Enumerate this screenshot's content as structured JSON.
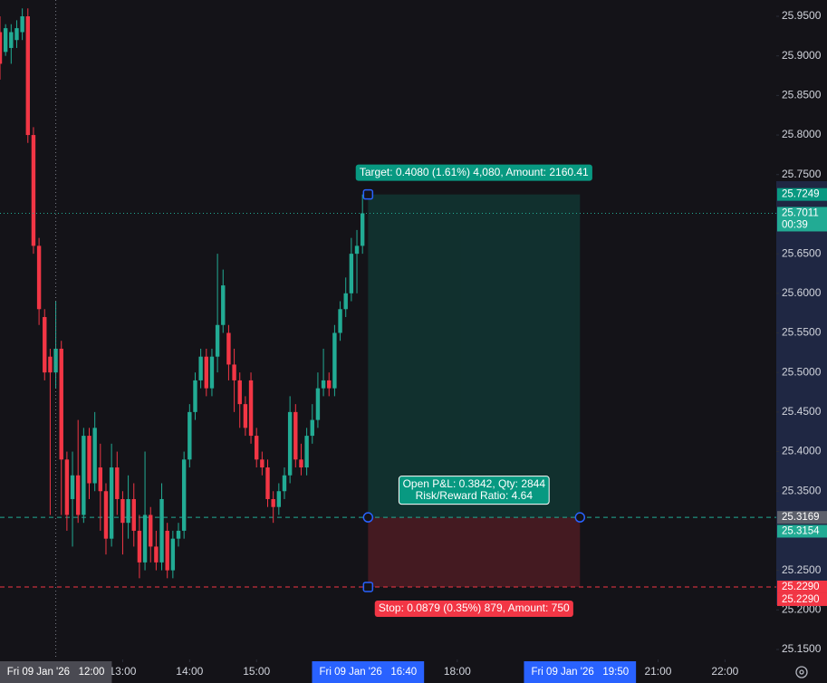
{
  "chart_data": {
    "type": "candlestick",
    "x": [
      "11:10",
      "11:15",
      "11:20",
      "11:25",
      "11:30",
      "11:35",
      "11:40",
      "11:45",
      "11:50",
      "11:55",
      "12:00",
      "12:05",
      "12:10",
      "12:15",
      "12:20",
      "12:25",
      "12:30",
      "12:35",
      "12:40",
      "12:45",
      "12:50",
      "12:55",
      "13:00",
      "13:05",
      "13:10",
      "13:15",
      "13:20",
      "13:25",
      "13:30",
      "13:35",
      "13:40",
      "13:45",
      "13:50",
      "13:55",
      "14:00",
      "14:05",
      "14:10",
      "14:15",
      "14:20",
      "14:25",
      "14:30",
      "14:35",
      "14:40",
      "14:45",
      "14:50",
      "14:55",
      "15:00",
      "15:05",
      "15:10",
      "15:15",
      "15:20",
      "15:25",
      "15:30",
      "15:35",
      "15:40",
      "15:45",
      "15:50",
      "15:55",
      "16:00",
      "16:05",
      "16:10",
      "16:15",
      "16:20",
      "16:25",
      "16:30",
      "16:35"
    ],
    "open": [
      25.93,
      25.905,
      25.91,
      25.92,
      25.93,
      25.95,
      25.8,
      25.66,
      25.57,
      25.52,
      25.5,
      25.53,
      25.39,
      25.34,
      25.37,
      25.32,
      25.42,
      25.36,
      25.38,
      25.35,
      25.29,
      25.38,
      25.34,
      25.31,
      25.34,
      25.3,
      25.26,
      25.32,
      25.28,
      25.26,
      25.3,
      25.25,
      25.29,
      25.3,
      25.39,
      25.45,
      25.49,
      25.52,
      25.48,
      25.52,
      25.56,
      25.55,
      25.51,
      25.49,
      25.46,
      25.49,
      25.42,
      25.39,
      25.38,
      25.34,
      25.33,
      25.35,
      25.37,
      25.45,
      25.39,
      25.38,
      25.42,
      25.44,
      25.48,
      25.49,
      25.48,
      25.55,
      25.58,
      25.6,
      25.65,
      25.66
    ],
    "high": [
      25.95,
      25.94,
      25.94,
      25.945,
      25.96,
      25.96,
      25.81,
      25.67,
      25.58,
      25.53,
      25.59,
      25.54,
      25.4,
      25.4,
      25.44,
      25.43,
      25.43,
      25.45,
      25.41,
      25.36,
      25.41,
      25.4,
      25.35,
      25.37,
      25.36,
      25.32,
      25.4,
      25.33,
      25.3,
      25.36,
      25.31,
      25.3,
      25.31,
      25.4,
      25.46,
      25.5,
      25.53,
      25.53,
      25.53,
      25.65,
      25.63,
      25.56,
      25.53,
      25.5,
      25.47,
      25.5,
      25.43,
      25.4,
      25.39,
      25.35,
      25.36,
      25.38,
      25.47,
      25.46,
      25.41,
      25.43,
      25.46,
      25.5,
      25.53,
      25.5,
      25.56,
      25.59,
      25.62,
      25.67,
      25.68,
      25.7249
    ],
    "low": [
      25.87,
      25.9,
      25.89,
      25.91,
      25.92,
      25.79,
      25.65,
      25.56,
      25.49,
      25.32,
      25.48,
      25.32,
      25.3,
      25.28,
      25.31,
      25.31,
      25.34,
      25.35,
      25.3,
      25.27,
      25.28,
      25.32,
      25.27,
      25.29,
      25.28,
      25.24,
      25.25,
      25.26,
      25.25,
      25.25,
      25.24,
      25.24,
      25.28,
      25.29,
      25.38,
      25.44,
      25.48,
      25.47,
      25.47,
      25.5,
      25.55,
      25.49,
      25.45,
      25.43,
      25.42,
      25.41,
      25.38,
      25.37,
      25.33,
      25.31,
      25.32,
      25.34,
      25.36,
      25.38,
      25.37,
      25.37,
      25.41,
      25.43,
      25.47,
      25.47,
      25.47,
      25.54,
      25.57,
      25.59,
      25.6,
      25.65
    ],
    "close": [
      25.89,
      25.935,
      25.93,
      25.935,
      25.95,
      25.8,
      25.66,
      25.58,
      25.5,
      25.5,
      25.53,
      25.39,
      25.32,
      25.37,
      25.32,
      25.42,
      25.36,
      25.43,
      25.35,
      25.29,
      25.38,
      25.34,
      25.31,
      25.34,
      25.3,
      25.26,
      25.32,
      25.28,
      25.26,
      25.34,
      25.25,
      25.29,
      25.3,
      25.39,
      25.45,
      25.49,
      25.52,
      25.48,
      25.52,
      25.56,
      25.61,
      25.51,
      25.49,
      25.46,
      25.43,
      25.42,
      25.39,
      25.38,
      25.34,
      25.33,
      25.35,
      25.37,
      25.45,
      25.39,
      25.38,
      25.42,
      25.44,
      25.48,
      25.49,
      25.48,
      25.55,
      25.58,
      25.6,
      25.65,
      25.66,
      25.7011
    ],
    "up_color": "#22ab94",
    "down_color": "#f23645",
    "xlim": [
      "11:10",
      "22:46"
    ],
    "ylim": [
      25.1374,
      25.9706
    ],
    "xticks": [
      "13:00",
      "14:00",
      "15:00",
      "18:00",
      "21:00",
      "22:00"
    ],
    "yticks": [
      {
        "value": 25.95,
        "label": "25.9500"
      },
      {
        "value": 25.9,
        "label": "25.9000"
      },
      {
        "value": 25.85,
        "label": "25.8500"
      },
      {
        "value": 25.8,
        "label": "25.8000"
      },
      {
        "value": 25.75,
        "label": "25.7500"
      },
      {
        "value": 25.65,
        "label": "25.6500"
      },
      {
        "value": 25.6,
        "label": "25.6000"
      },
      {
        "value": 25.55,
        "label": "25.5500"
      },
      {
        "value": 25.5,
        "label": "25.5000"
      },
      {
        "value": 25.45,
        "label": "25.4500"
      },
      {
        "value": 25.4,
        "label": "25.4000"
      },
      {
        "value": 25.35,
        "label": "25.3500"
      },
      {
        "value": 25.25,
        "label": "25.2500"
      },
      {
        "value": 25.2,
        "label": "25.2000"
      },
      {
        "value": 25.15,
        "label": "25.1500"
      }
    ],
    "position": {
      "entry": 25.3169,
      "target": 25.7249,
      "stop": 25.229,
      "start": "16:40",
      "end": "19:50",
      "target_label": "Target: 0.4080 (1.61%) 4,080, Amount: 2160.41",
      "pnl_label": "Open P&L: 0.3842, Qty: 2844",
      "ratio_label": "Risk/Reward Ratio: 4.64",
      "stop_label": "Stop: 0.0879 (0.35%) 879, Amount: 750"
    },
    "current_price": {
      "value": 25.7011,
      "label": "25.7011",
      "countdown": "00:39",
      "color": "#22ab94"
    },
    "price_tags": [
      {
        "value": 25.7249,
        "label": "25.7249",
        "color": "#089981"
      },
      {
        "value": 25.3169,
        "label": "25.3169",
        "color": "#5d606b"
      },
      {
        "value": 25.3154,
        "label": "25.3154",
        "color": "#22ab94"
      },
      {
        "value": 25.229,
        "label": "25.2290",
        "color": "#f23645"
      },
      {
        "value": 25.229,
        "label": "25.2290",
        "color": "#f23645"
      }
    ],
    "time_tags": [
      {
        "value": "12:00",
        "label": "Fri 09 Jan '26   12:00",
        "color": "#4a4a52"
      },
      {
        "value": "16:40",
        "label": "Fri 09 Jan '26   16:40",
        "color": "#2962ff"
      },
      {
        "value": "19:50",
        "label": "Fri 09 Jan '26   19:50",
        "color": "#2962ff"
      }
    ]
  }
}
